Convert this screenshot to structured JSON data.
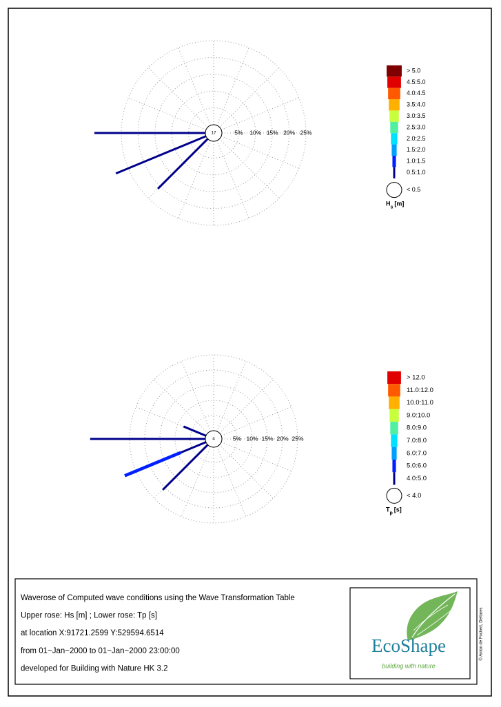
{
  "chart_data": [
    {
      "type": "rose",
      "center_value": 17,
      "calm_label": "< 0.5",
      "legend_title": {
        "symbol": "H",
        "sub": "s",
        "unit": "[m]"
      },
      "rlim": [
        0,
        25
      ],
      "rticks": [
        {
          "value": 5,
          "label": "5%"
        },
        {
          "value": 10,
          "label": "10%"
        },
        {
          "value": 15,
          "label": "15%"
        },
        {
          "value": 20,
          "label": "20%"
        },
        {
          "value": 25,
          "label": "25%"
        }
      ],
      "directions": [
        270,
        247.5,
        225
      ],
      "series": [
        {
          "name": "> 5.0",
          "color": "#7f0000",
          "values": [
            0,
            0,
            0
          ]
        },
        {
          "name": "4.5:5.0",
          "color": "#e00000",
          "values": [
            0,
            0,
            0
          ]
        },
        {
          "name": "4.0:4.5",
          "color": "#ff5a00",
          "values": [
            0,
            0,
            0
          ]
        },
        {
          "name": "3.5:4.0",
          "color": "#ffb000",
          "values": [
            0,
            0,
            0
          ]
        },
        {
          "name": "3.0:3.5",
          "color": "#c8ff3c",
          "values": [
            0,
            0,
            0
          ]
        },
        {
          "name": "2.5:3.0",
          "color": "#50f0a0",
          "values": [
            0,
            0,
            0
          ]
        },
        {
          "name": "2.0:2.5",
          "color": "#00e0ff",
          "values": [
            0,
            0,
            0
          ]
        },
        {
          "name": "1.5:2.0",
          "color": "#00a0ff",
          "values": [
            0,
            0,
            0
          ]
        },
        {
          "name": "1.0:1.5",
          "color": "#0020ff",
          "values": [
            0,
            0,
            0
          ]
        },
        {
          "name": "0.5:1.0",
          "color": "#00008b",
          "values": [
            33,
            29,
            21
          ]
        }
      ]
    },
    {
      "type": "rose",
      "center_value": 4,
      "calm_label": "< 4.0",
      "legend_title": {
        "symbol": "T",
        "sub": "p",
        "unit": "[s]"
      },
      "rlim": [
        0,
        25
      ],
      "rticks": [
        {
          "value": 5,
          "label": "5%"
        },
        {
          "value": 10,
          "label": "10%"
        },
        {
          "value": 15,
          "label": "15%"
        },
        {
          "value": 20,
          "label": "20%"
        },
        {
          "value": 25,
          "label": "25%"
        }
      ],
      "directions": [
        292.5,
        270,
        247.5,
        225
      ],
      "series": [
        {
          "name": "> 12.0",
          "color": "#e00000",
          "values": [
            0,
            0,
            0,
            0
          ]
        },
        {
          "name": "11.0:12.0",
          "color": "#ff5a00",
          "values": [
            0,
            0,
            0,
            0
          ]
        },
        {
          "name": "10.0:11.0",
          "color": "#ffb000",
          "values": [
            0,
            0,
            0,
            0
          ]
        },
        {
          "name": "9.0:10.0",
          "color": "#c8ff3c",
          "values": [
            0,
            0,
            0,
            0
          ]
        },
        {
          "name": "8.0:9.0",
          "color": "#50f0a0",
          "values": [
            0,
            0,
            0,
            0
          ]
        },
        {
          "name": "7.0:8.0",
          "color": "#00e0ff",
          "values": [
            0,
            0,
            0,
            0
          ]
        },
        {
          "name": "6.0:7.0",
          "color": "#00a0ff",
          "values": [
            0,
            0,
            0,
            0
          ]
        },
        {
          "name": "5.0:6.0",
          "color": "#0020ff",
          "values": [
            0,
            0,
            20,
            0
          ]
        },
        {
          "name": "4.0:5.0",
          "color": "#00008b",
          "values": [
            8,
            38,
            9,
            21
          ]
        }
      ]
    }
  ],
  "caption": [
    "Waverose of Computed wave conditions using the Wave Transformation Table",
    "Upper rose: Hs [m] ; Lower rose: Tp [s]",
    "at location X:91721.2599 Y:529594.6514",
    "from 01−Jan−2000 to 01−Jan−2000 23:00:00",
    "developed for Building with Nature HK 3.2"
  ],
  "logo": {
    "name": "EcoShape",
    "tagline": "building with nature"
  },
  "credit": "© Anton de Fockert, Deltares"
}
